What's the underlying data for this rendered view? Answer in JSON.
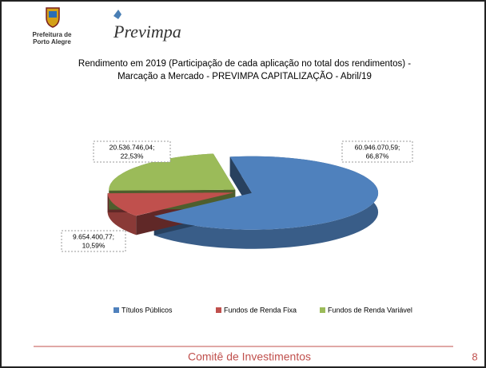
{
  "slide": {
    "org_line1": "Prefeitura de",
    "org_line2": "Porto Alegre",
    "brand": "Previmpa",
    "footer": "Comitê de Investimentos",
    "page_number": "8"
  },
  "chart_data": {
    "type": "pie3d",
    "title": "Rendimento em 2019 (Participação de cada aplicação no total dos rendimentos) - Marcação a Mercado - PREVIMPA CAPITALIZAÇÃO - Abril/19",
    "categories": [
      "Títulos Públicos",
      "Fundos de Renda Fixa",
      "Fundos de Renda Variável"
    ],
    "values": [
      60946070.59,
      9654400.77,
      20536746.04
    ],
    "value_labels": [
      "60.946.070,59;",
      "9.654.400,77;",
      "20.536.746,04;"
    ],
    "percentages": [
      66.87,
      10.59,
      22.53
    ],
    "percentage_labels": [
      "66,87%",
      "10,59%",
      "22,53%"
    ],
    "colors": [
      "#4f81bd",
      "#c0504d",
      "#9bbb59"
    ],
    "legend": "bottom"
  }
}
